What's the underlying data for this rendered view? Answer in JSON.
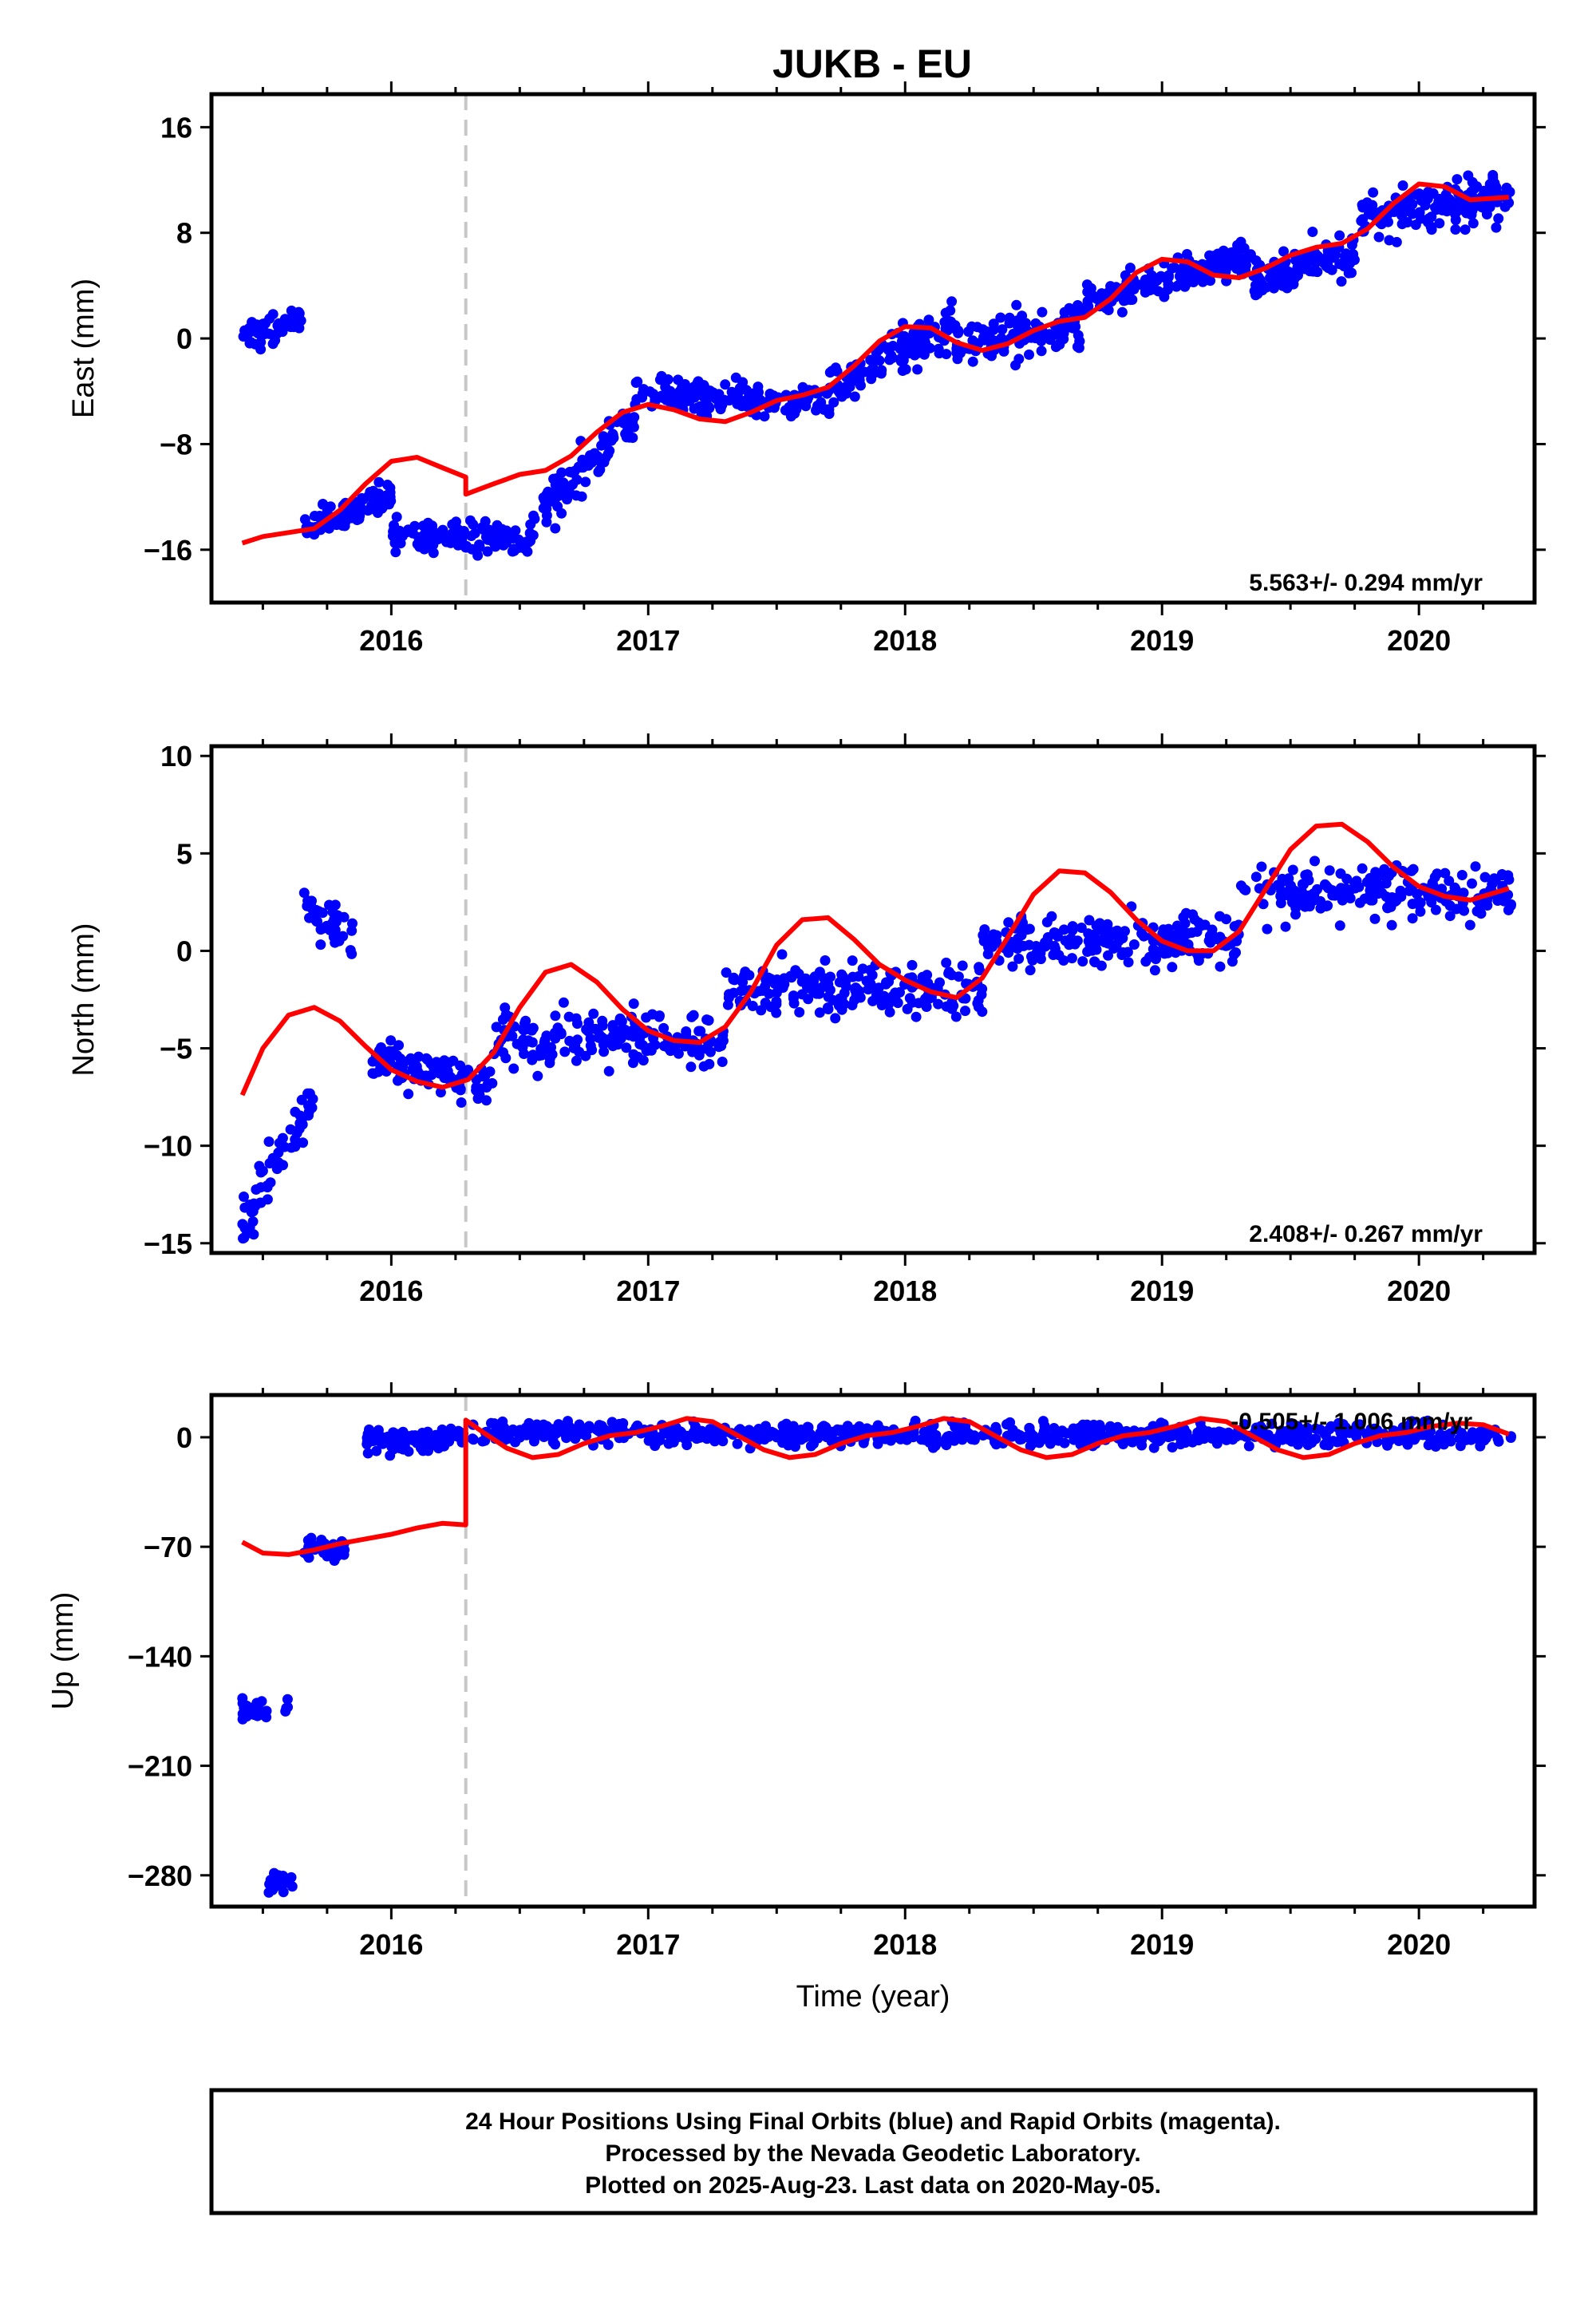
{
  "title": "JUKB - EU",
  "colors": {
    "final_points": "#0000ff",
    "model_line": "#ff0000",
    "event_line": "#c8c8c8",
    "frame": "#000000"
  },
  "chart_data": [
    {
      "type": "scatter",
      "component": "east",
      "ylabel": "East (mm)",
      "xlabel": "",
      "xlim": [
        2015.3,
        2020.45
      ],
      "ylim": [
        -20,
        18.5
      ],
      "yticks": [
        -16,
        -8,
        0,
        8,
        16
      ],
      "xticks": [
        2016,
        2017,
        2018,
        2019,
        2020
      ],
      "event_year": 2016.29,
      "rate_text": "5.563+/- 0.294 mm/yr",
      "model": {
        "x": [
          2015.42,
          2015.5,
          2015.6,
          2015.7,
          2015.8,
          2015.9,
          2016.0,
          2016.1,
          2016.2,
          2016.29,
          2016.29,
          2016.4,
          2016.5,
          2016.6,
          2016.7,
          2016.8,
          2016.9,
          2017.0,
          2017.1,
          2017.2,
          2017.3,
          2017.4,
          2017.5,
          2017.6,
          2017.7,
          2017.8,
          2017.9,
          2018.0,
          2018.1,
          2018.2,
          2018.3,
          2018.4,
          2018.5,
          2018.6,
          2018.7,
          2018.8,
          2018.9,
          2019.0,
          2019.1,
          2019.2,
          2019.3,
          2019.4,
          2019.5,
          2019.6,
          2019.7,
          2019.8,
          2019.9,
          2020.0,
          2020.1,
          2020.2,
          2020.35
        ],
        "y": [
          -15.5,
          -15.0,
          -14.7,
          -14.4,
          -13.0,
          -11.0,
          -9.3,
          -9.0,
          -9.8,
          -10.5,
          -11.8,
          -11.0,
          -10.3,
          -10.0,
          -8.9,
          -7.1,
          -5.6,
          -5.0,
          -5.4,
          -6.1,
          -6.3,
          -5.6,
          -4.7,
          -4.3,
          -3.7,
          -2.1,
          -0.2,
          0.9,
          0.8,
          -0.3,
          -0.9,
          -0.4,
          0.6,
          1.3,
          1.6,
          3.0,
          5.0,
          6.0,
          5.8,
          4.8,
          4.6,
          5.3,
          6.3,
          6.9,
          7.2,
          8.3,
          10.2,
          11.7,
          11.5,
          10.5,
          10.7
        ]
      },
      "points": {
        "segments": [
          {
            "x0": 2015.42,
            "x1": 2015.65,
            "ylo": -4,
            "yhi": 4.5,
            "y0": 0.0,
            "y1": 1.5,
            "n": 55
          },
          {
            "x0": 2015.66,
            "x1": 2016.0,
            "ylo": -20,
            "yhi": -10,
            "y0": -14.5,
            "y1": -12.0,
            "n": 80
          },
          {
            "x0": 2016.0,
            "x1": 2016.55,
            "ylo": -20,
            "yhi": -10,
            "y0": -15.0,
            "y1": -15.0,
            "n": 120
          },
          {
            "x0": 2016.55,
            "x1": 2016.95,
            "ylo": -17,
            "yhi": -5,
            "y0": -14.0,
            "y1": -5.5,
            "n": 100
          },
          {
            "x0": 2016.95,
            "x1": 2017.7,
            "ylo": -9,
            "yhi": 1,
            "y0": -4.0,
            "y1": -5.0,
            "n": 160
          },
          {
            "x0": 2017.7,
            "x1": 2018.2,
            "ylo": -6,
            "yhi": 7,
            "y0": -4.0,
            "y1": 1.5,
            "n": 130
          },
          {
            "x0": 2018.2,
            "x1": 2018.7,
            "ylo": -11,
            "yhi": 5,
            "y0": -0.5,
            "y1": 1.0,
            "n": 120
          },
          {
            "x0": 2018.7,
            "x1": 2019.35,
            "ylo": 0,
            "yhi": 10,
            "y0": 3.0,
            "y1": 6.0,
            "n": 150
          },
          {
            "x0": 2019.35,
            "x1": 2019.75,
            "ylo": 0,
            "yhi": 14,
            "y0": 4.5,
            "y1": 6.5,
            "n": 100
          },
          {
            "x0": 2019.75,
            "x1": 2020.36,
            "ylo": 5,
            "yhi": 18,
            "y0": 9.0,
            "y1": 11.0,
            "n": 160
          }
        ],
        "spread": 1.3
      }
    },
    {
      "type": "scatter",
      "component": "north",
      "ylabel": "North (mm)",
      "xlabel": "",
      "xlim": [
        2015.3,
        2020.45
      ],
      "ylim": [
        -15.5,
        10.5
      ],
      "yticks": [
        -15,
        -10,
        -5,
        0,
        5,
        10
      ],
      "xticks": [
        2016,
        2017,
        2018,
        2019,
        2020
      ],
      "event_year": 2016.29,
      "rate_text": "2.408+/- 0.267 mm/yr",
      "model": {
        "x": [
          2015.42,
          2015.5,
          2015.6,
          2015.7,
          2015.8,
          2015.9,
          2016.0,
          2016.1,
          2016.2,
          2016.3,
          2016.4,
          2016.5,
          2016.6,
          2016.7,
          2016.8,
          2016.9,
          2017.0,
          2017.1,
          2017.2,
          2017.3,
          2017.4,
          2017.5,
          2017.6,
          2017.7,
          2017.8,
          2017.9,
          2018.0,
          2018.1,
          2018.2,
          2018.3,
          2018.4,
          2018.5,
          2018.6,
          2018.7,
          2018.8,
          2018.9,
          2019.0,
          2019.1,
          2019.2,
          2019.3,
          2019.4,
          2019.5,
          2019.6,
          2019.7,
          2019.8,
          2019.9,
          2020.0,
          2020.1,
          2020.2,
          2020.35
        ],
        "y": [
          -7.4,
          -5.0,
          -3.3,
          -2.9,
          -3.6,
          -4.9,
          -6.1,
          -6.7,
          -7.0,
          -6.6,
          -5.2,
          -2.9,
          -1.1,
          -0.7,
          -1.6,
          -3.0,
          -4.1,
          -4.6,
          -4.7,
          -3.9,
          -2.1,
          0.3,
          1.6,
          1.7,
          0.6,
          -0.7,
          -1.5,
          -2.1,
          -2.4,
          -1.4,
          0.7,
          2.9,
          4.1,
          4.0,
          3.0,
          1.6,
          0.5,
          0.0,
          0.0,
          1.0,
          3.1,
          5.2,
          6.4,
          6.5,
          5.6,
          4.3,
          3.3,
          2.8,
          2.6,
          3.2
        ]
      },
      "points": {
        "segments": [
          {
            "x0": 2015.42,
            "x1": 2015.7,
            "ylo": -15.2,
            "yhi": -6.5,
            "y0": -14.0,
            "y1": -7.5,
            "n": 60
          },
          {
            "x0": 2015.65,
            "x1": 2015.85,
            "ylo": -1,
            "yhi": 5.3,
            "y0": 2.5,
            "y1": 0.5,
            "n": 40
          },
          {
            "x0": 2015.9,
            "x1": 2016.4,
            "ylo": -9,
            "yhi": -3,
            "y0": -5.5,
            "y1": -6.8,
            "n": 100
          },
          {
            "x0": 2016.4,
            "x1": 2017.3,
            "ylo": -8,
            "yhi": 1,
            "y0": -4.5,
            "y1": -4.5,
            "n": 180
          },
          {
            "x0": 2017.3,
            "x1": 2018.3,
            "ylo": -5,
            "yhi": 6,
            "y0": -2.0,
            "y1": -2.0,
            "n": 200
          },
          {
            "x0": 2018.3,
            "x1": 2019.3,
            "ylo": -5,
            "yhi": 9,
            "y0": 0.5,
            "y1": 0.5,
            "n": 200
          },
          {
            "x0": 2019.3,
            "x1": 2020.36,
            "ylo": -2,
            "yhi": 10,
            "y0": 3.0,
            "y1": 3.0,
            "n": 200
          }
        ],
        "spread": 1.0
      }
    },
    {
      "type": "scatter",
      "component": "up",
      "ylabel": "Up (mm)",
      "xlabel": "Time (year)",
      "xlim": [
        2015.3,
        2020.45
      ],
      "ylim": [
        -300,
        27
      ],
      "yticks": [
        -280,
        -210,
        -140,
        -70,
        0
      ],
      "xticks": [
        2016,
        2017,
        2018,
        2019,
        2020
      ],
      "event_year": 2016.29,
      "rate_text": "-0.505+/- 1.006 mm/yr",
      "model": {
        "x": [
          2015.42,
          2015.5,
          2015.6,
          2015.7,
          2015.8,
          2015.9,
          2016.0,
          2016.1,
          2016.2,
          2016.29,
          2016.29,
          2016.35,
          2016.45,
          2016.55,
          2016.65,
          2016.75,
          2016.85,
          2016.95,
          2017.05,
          2017.15,
          2017.25,
          2017.35,
          2017.45,
          2017.55,
          2017.65,
          2017.75,
          2017.85,
          2017.95,
          2018.05,
          2018.15,
          2018.25,
          2018.35,
          2018.45,
          2018.55,
          2018.65,
          2018.75,
          2018.85,
          2018.95,
          2019.05,
          2019.15,
          2019.25,
          2019.35,
          2019.45,
          2019.55,
          2019.65,
          2019.75,
          2019.85,
          2019.95,
          2020.05,
          2020.15,
          2020.25,
          2020.35
        ],
        "y": [
          -67,
          -74,
          -75,
          -72,
          -68,
          -65,
          -62,
          -58,
          -55,
          -56,
          11,
          4,
          -7,
          -13,
          -11,
          -4,
          1,
          3,
          7,
          12,
          10,
          1,
          -8,
          -13,
          -11,
          -4,
          1,
          3,
          7,
          12,
          10,
          1,
          -8,
          -13,
          -11,
          -4,
          1,
          3,
          7,
          12,
          10,
          1,
          -8,
          -13,
          -11,
          -4,
          1,
          3,
          7,
          9,
          8,
          2
        ]
      },
      "points": {
        "segments": [
          {
            "x0": 2015.42,
            "x1": 2015.52,
            "ylo": -186,
            "yhi": -160,
            "y0": -175,
            "y1": -175,
            "n": 25
          },
          {
            "x0": 2015.58,
            "x1": 2015.6,
            "ylo": -183,
            "yhi": -163,
            "y0": -173,
            "y1": -173,
            "n": 4
          },
          {
            "x0": 2015.52,
            "x1": 2015.62,
            "ylo": -294,
            "yhi": -272,
            "y0": -285,
            "y1": -285,
            "n": 25
          },
          {
            "x0": 2015.66,
            "x1": 2015.82,
            "ylo": -85,
            "yhi": -60,
            "y0": -72,
            "y1": -72,
            "n": 35
          },
          {
            "x0": 2015.9,
            "x1": 2016.28,
            "ylo": -15,
            "yhi": 10,
            "y0": -2,
            "y1": 0,
            "n": 90
          },
          {
            "x0": 2016.29,
            "x1": 2020.36,
            "ylo": -18,
            "yhi": 25,
            "y0": 3,
            "y1": 1,
            "n": 700
          }
        ],
        "spread": 7
      }
    }
  ],
  "footer": {
    "line1": "24 Hour Positions Using Final Orbits (blue) and Rapid Orbits (magenta).",
    "line2": "Processed by the Nevada Geodetic Laboratory.",
    "line3": "Plotted on 2025-Aug-23. Last data on 2020-May-05."
  }
}
